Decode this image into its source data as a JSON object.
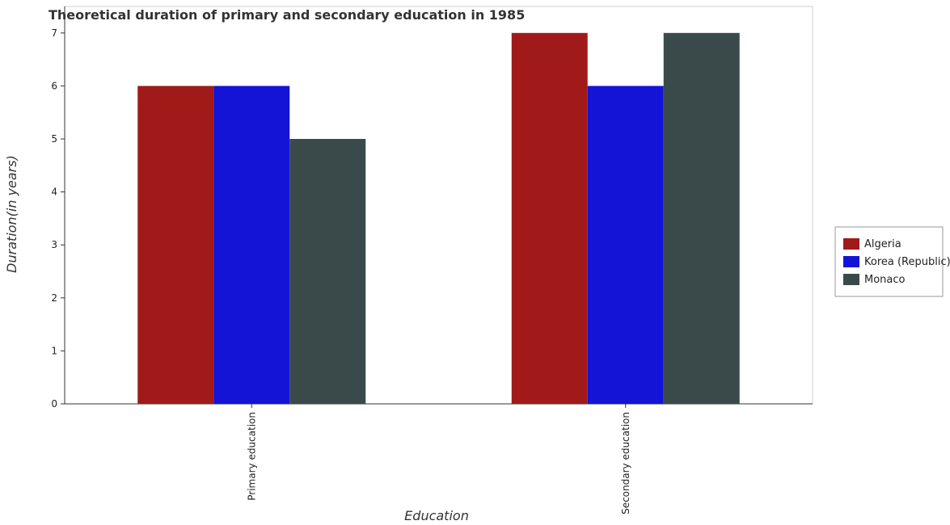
{
  "chart_data": {
    "type": "bar",
    "title": "Theoretical duration of primary and secondary education in 1985",
    "xlabel": "Education",
    "ylabel": "Duration(in years)",
    "categories": [
      "Primary education",
      "Secondary education"
    ],
    "series": [
      {
        "name": "Algeria",
        "color": "#a11a1a",
        "values": [
          6,
          7
        ]
      },
      {
        "name": "Korea (Republic)",
        "color": "#1414d6",
        "values": [
          6,
          6
        ]
      },
      {
        "name": "Monaco",
        "color": "#3a4a4a",
        "values": [
          5,
          7
        ]
      }
    ],
    "ylim": [
      0,
      7.5
    ],
    "yticks": [
      0,
      1,
      2,
      3,
      4,
      5,
      6,
      7
    ],
    "legend": "right",
    "grid": false
  }
}
